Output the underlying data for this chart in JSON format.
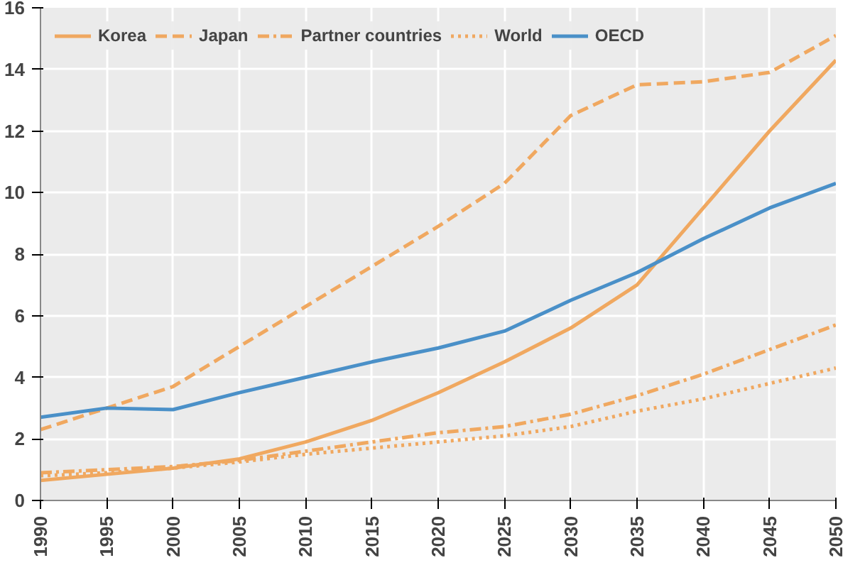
{
  "chart_data": {
    "type": "line",
    "x": [
      1990,
      1995,
      2000,
      2005,
      2010,
      2015,
      2020,
      2025,
      2030,
      2035,
      2040,
      2045,
      2050
    ],
    "series": [
      {
        "name": "Korea",
        "color": "#f0a860",
        "line_style": "solid",
        "values": [
          0.65,
          0.85,
          1.05,
          1.35,
          1.9,
          2.6,
          3.5,
          4.5,
          5.6,
          7.0,
          9.5,
          12.0,
          14.3
        ]
      },
      {
        "name": "Japan",
        "color": "#f0a860",
        "line_style": "dashed",
        "values": [
          2.3,
          3.0,
          3.7,
          5.0,
          6.3,
          7.6,
          8.9,
          10.3,
          12.5,
          13.5,
          13.6,
          13.9,
          15.1
        ]
      },
      {
        "name": "Partner countries",
        "color": "#f0a860",
        "line_style": "dashdot",
        "values": [
          0.9,
          1.0,
          1.1,
          1.3,
          1.6,
          1.9,
          2.2,
          2.4,
          2.8,
          3.4,
          4.1,
          4.9,
          5.7
        ]
      },
      {
        "name": "World",
        "color": "#f0a860",
        "line_style": "dotted",
        "values": [
          0.8,
          0.9,
          1.05,
          1.25,
          1.5,
          1.7,
          1.9,
          2.1,
          2.4,
          2.9,
          3.3,
          3.8,
          4.3
        ]
      },
      {
        "name": "OECD",
        "color": "#4a90c8",
        "line_style": "solid",
        "values": [
          2.7,
          3.0,
          2.95,
          3.5,
          4.0,
          4.5,
          4.95,
          5.5,
          6.5,
          7.4,
          8.5,
          9.5,
          10.3
        ]
      }
    ],
    "xlim": [
      1990,
      2050
    ],
    "xticks": [
      1990,
      1995,
      2000,
      2005,
      2010,
      2015,
      2020,
      2025,
      2030,
      2035,
      2040,
      2045,
      2050
    ],
    "ylim": [
      0,
      16
    ],
    "yticks": [
      0,
      2,
      4,
      6,
      8,
      10,
      12,
      14,
      16
    ],
    "grid": true,
    "legend": "top",
    "marker": "none"
  }
}
